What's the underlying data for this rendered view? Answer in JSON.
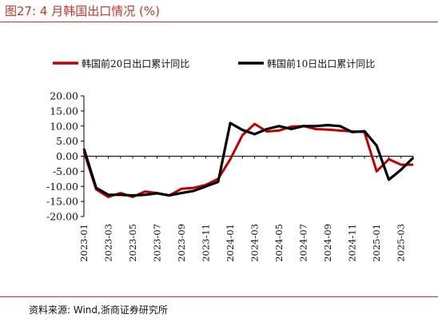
{
  "title": "图27:  4 月韩国出口情况 (%)",
  "source": "资料来源:  Wind,浙商证券研究所",
  "chart_data": {
    "type": "line",
    "ylim": [
      -20,
      20
    ],
    "yticks": [
      "20.00",
      "15.00",
      "10.00",
      "5.00",
      "0.00",
      "-5.00",
      "-10.00",
      "-15.00",
      "-20.00"
    ],
    "xticks": [
      "2023-01",
      "2023-03",
      "2023-05",
      "2023-07",
      "2023-09",
      "2023-11",
      "2024-01",
      "2024-03",
      "2024-05",
      "2024-07",
      "2024-09",
      "2024-11",
      "2025-01",
      "2025-03"
    ],
    "x": [
      "2023-01",
      "2023-02",
      "2023-03",
      "2023-04",
      "2023-05",
      "2023-06",
      "2023-07",
      "2023-08",
      "2023-09",
      "2023-10",
      "2023-11",
      "2023-12",
      "2024-01",
      "2024-02",
      "2024-03",
      "2024-04",
      "2024-05",
      "2024-06",
      "2024-07",
      "2024-08",
      "2024-09",
      "2024-10",
      "2024-11",
      "2024-12",
      "2025-01",
      "2025-02",
      "2025-03",
      "2025-04"
    ],
    "grid": false,
    "legend_position": "top",
    "series": [
      {
        "name": "韩国前20日出口累计同比",
        "color": "#c00000",
        "values": [
          1.5,
          -11.0,
          -13.5,
          -12.2,
          -13.5,
          -11.7,
          -12.2,
          -13.0,
          -10.8,
          -10.5,
          -9.5,
          -7.5,
          -1.0,
          7.0,
          10.7,
          8.2,
          8.5,
          9.8,
          10.0,
          9.0,
          8.8,
          8.5,
          8.2,
          8.0,
          -5.0,
          -1.0,
          -2.8,
          -2.8
        ]
      },
      {
        "name": "韩国前10日出口累计同比",
        "color": "#000000",
        "values": [
          2.5,
          -10.5,
          -12.8,
          -12.8,
          -13.0,
          -12.8,
          -12.3,
          -13.0,
          -12.2,
          -11.5,
          -10.0,
          -8.5,
          11.0,
          8.7,
          7.3,
          9.0,
          10.0,
          9.0,
          10.0,
          10.0,
          10.3,
          10.0,
          8.0,
          8.3,
          3.5,
          -7.8,
          -4.5,
          -0.5
        ]
      }
    ]
  }
}
